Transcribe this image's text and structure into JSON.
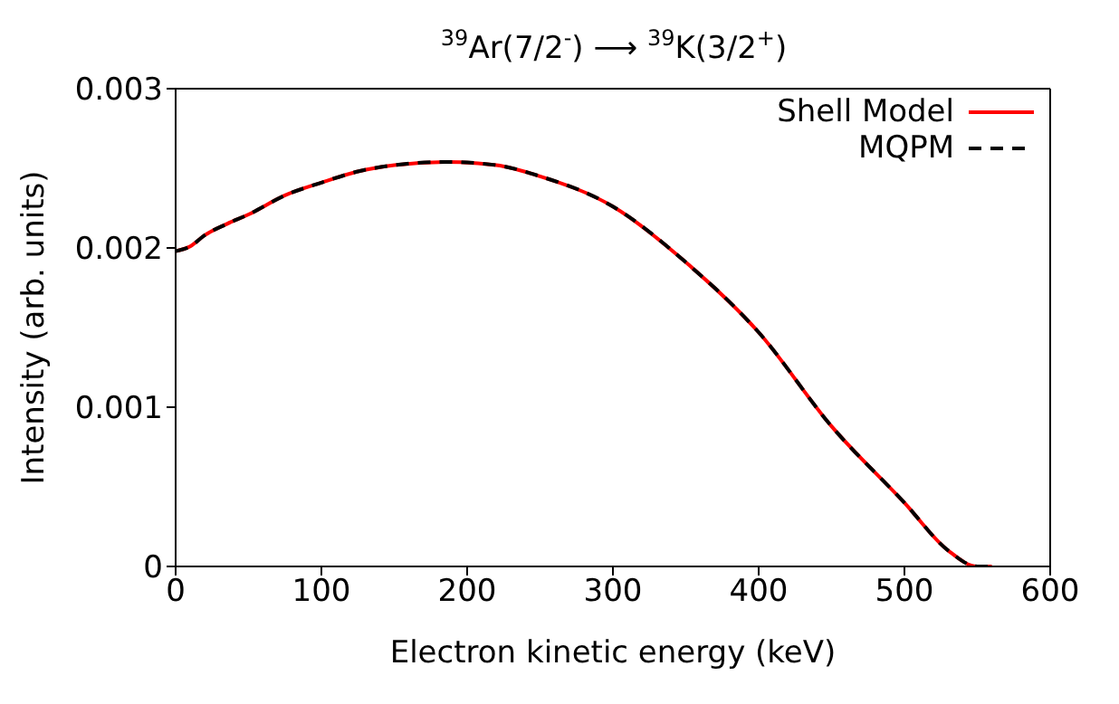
{
  "chart_data": {
    "type": "line",
    "title": "$^{39}$Ar(7/2$^{-}$) ⟶ $^{39}$K(3/2$^{+}$)",
    "xlabel": "Electron kinetic energy (keV)",
    "ylabel": "Intensity (arb. units)",
    "x": [
      0,
      10,
      20,
      35,
      50,
      75,
      100,
      125,
      150,
      185,
      220,
      250,
      300,
      350,
      400,
      450,
      500,
      530,
      550,
      560
    ],
    "series": [
      {
        "name": "Shell Model",
        "color": "#ff0000",
        "line_style": "solid",
        "values": [
          0.00198,
          0.00201,
          0.00208,
          0.00215,
          0.00221,
          0.00233,
          0.00241,
          0.00248,
          0.00252,
          0.00254,
          0.00252,
          0.00245,
          0.00226,
          0.00191,
          0.00147,
          0.00088,
          0.0004,
          0.0001,
          0.0,
          0.0
        ]
      },
      {
        "name": "MQPM",
        "color": "#000000",
        "line_style": "dashed",
        "values": [
          0.00198,
          0.00201,
          0.00208,
          0.00215,
          0.00221,
          0.00233,
          0.00241,
          0.00248,
          0.00252,
          0.00254,
          0.00252,
          0.00245,
          0.00226,
          0.00191,
          0.00147,
          0.00088,
          0.0004,
          0.0001,
          0.0,
          0.0
        ]
      }
    ],
    "xlim": [
      0,
      600
    ],
    "xticks": [
      0,
      100,
      200,
      300,
      400,
      500,
      600
    ],
    "ylim": [
      0,
      0.003
    ],
    "yticks": [
      0,
      0.001,
      0.002,
      0.003
    ],
    "legend": "top right",
    "marker": "none"
  }
}
